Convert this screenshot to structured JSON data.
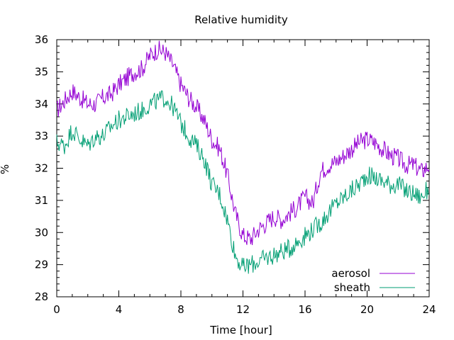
{
  "chart_data": {
    "type": "line",
    "title": "Relative humidity",
    "xlabel": "Time [hour]",
    "ylabel": "%",
    "xlim": [
      0,
      24
    ],
    "ylim": [
      28,
      36
    ],
    "xticks": [
      0,
      4,
      8,
      12,
      16,
      20,
      24
    ],
    "yticks": [
      28,
      29,
      30,
      31,
      32,
      33,
      34,
      35,
      36
    ],
    "grid": false,
    "legend_position": "bottom-right",
    "x": [
      0,
      0.5,
      1,
      1.5,
      2,
      2.5,
      3,
      3.5,
      4,
      4.5,
      5,
      5.5,
      6,
      6.5,
      7,
      7.5,
      8,
      8.5,
      9,
      9.5,
      10,
      10.5,
      11,
      11.5,
      12,
      12.5,
      13,
      13.5,
      14,
      14.5,
      15,
      15.5,
      16,
      16.5,
      17,
      17.5,
      18,
      18.5,
      19,
      19.5,
      20,
      20.5,
      21,
      21.5,
      22,
      22.5,
      23,
      23.5,
      24
    ],
    "series": [
      {
        "name": "aerosol",
        "color": "#9400d3",
        "values": [
          33.8,
          34.1,
          34.4,
          34.2,
          34.0,
          34.0,
          34.2,
          34.3,
          34.6,
          34.8,
          35.0,
          35.1,
          35.5,
          35.7,
          35.6,
          35.2,
          34.6,
          34.2,
          33.9,
          33.5,
          32.9,
          32.6,
          31.8,
          30.6,
          29.9,
          29.8,
          30.1,
          30.3,
          30.5,
          30.4,
          30.6,
          30.8,
          31.1,
          30.9,
          31.9,
          32.1,
          32.2,
          32.4,
          32.6,
          32.8,
          32.9,
          32.8,
          32.6,
          32.4,
          32.3,
          32.1,
          32.1,
          31.9,
          32.1
        ]
      },
      {
        "name": "sheath",
        "color": "#009e73",
        "values": [
          32.8,
          32.7,
          33.2,
          32.9,
          32.7,
          33.0,
          33.0,
          33.3,
          33.5,
          33.6,
          33.7,
          33.8,
          34.0,
          34.1,
          34.2,
          33.9,
          33.4,
          33.0,
          32.7,
          32.3,
          31.5,
          31.2,
          30.4,
          29.3,
          28.9,
          29.0,
          29.1,
          29.2,
          29.3,
          29.4,
          29.5,
          29.7,
          29.9,
          30.1,
          30.3,
          30.6,
          30.9,
          31.1,
          31.3,
          31.5,
          31.8,
          31.7,
          31.6,
          31.5,
          31.5,
          31.3,
          31.2,
          31.1,
          31.4
        ]
      }
    ]
  }
}
